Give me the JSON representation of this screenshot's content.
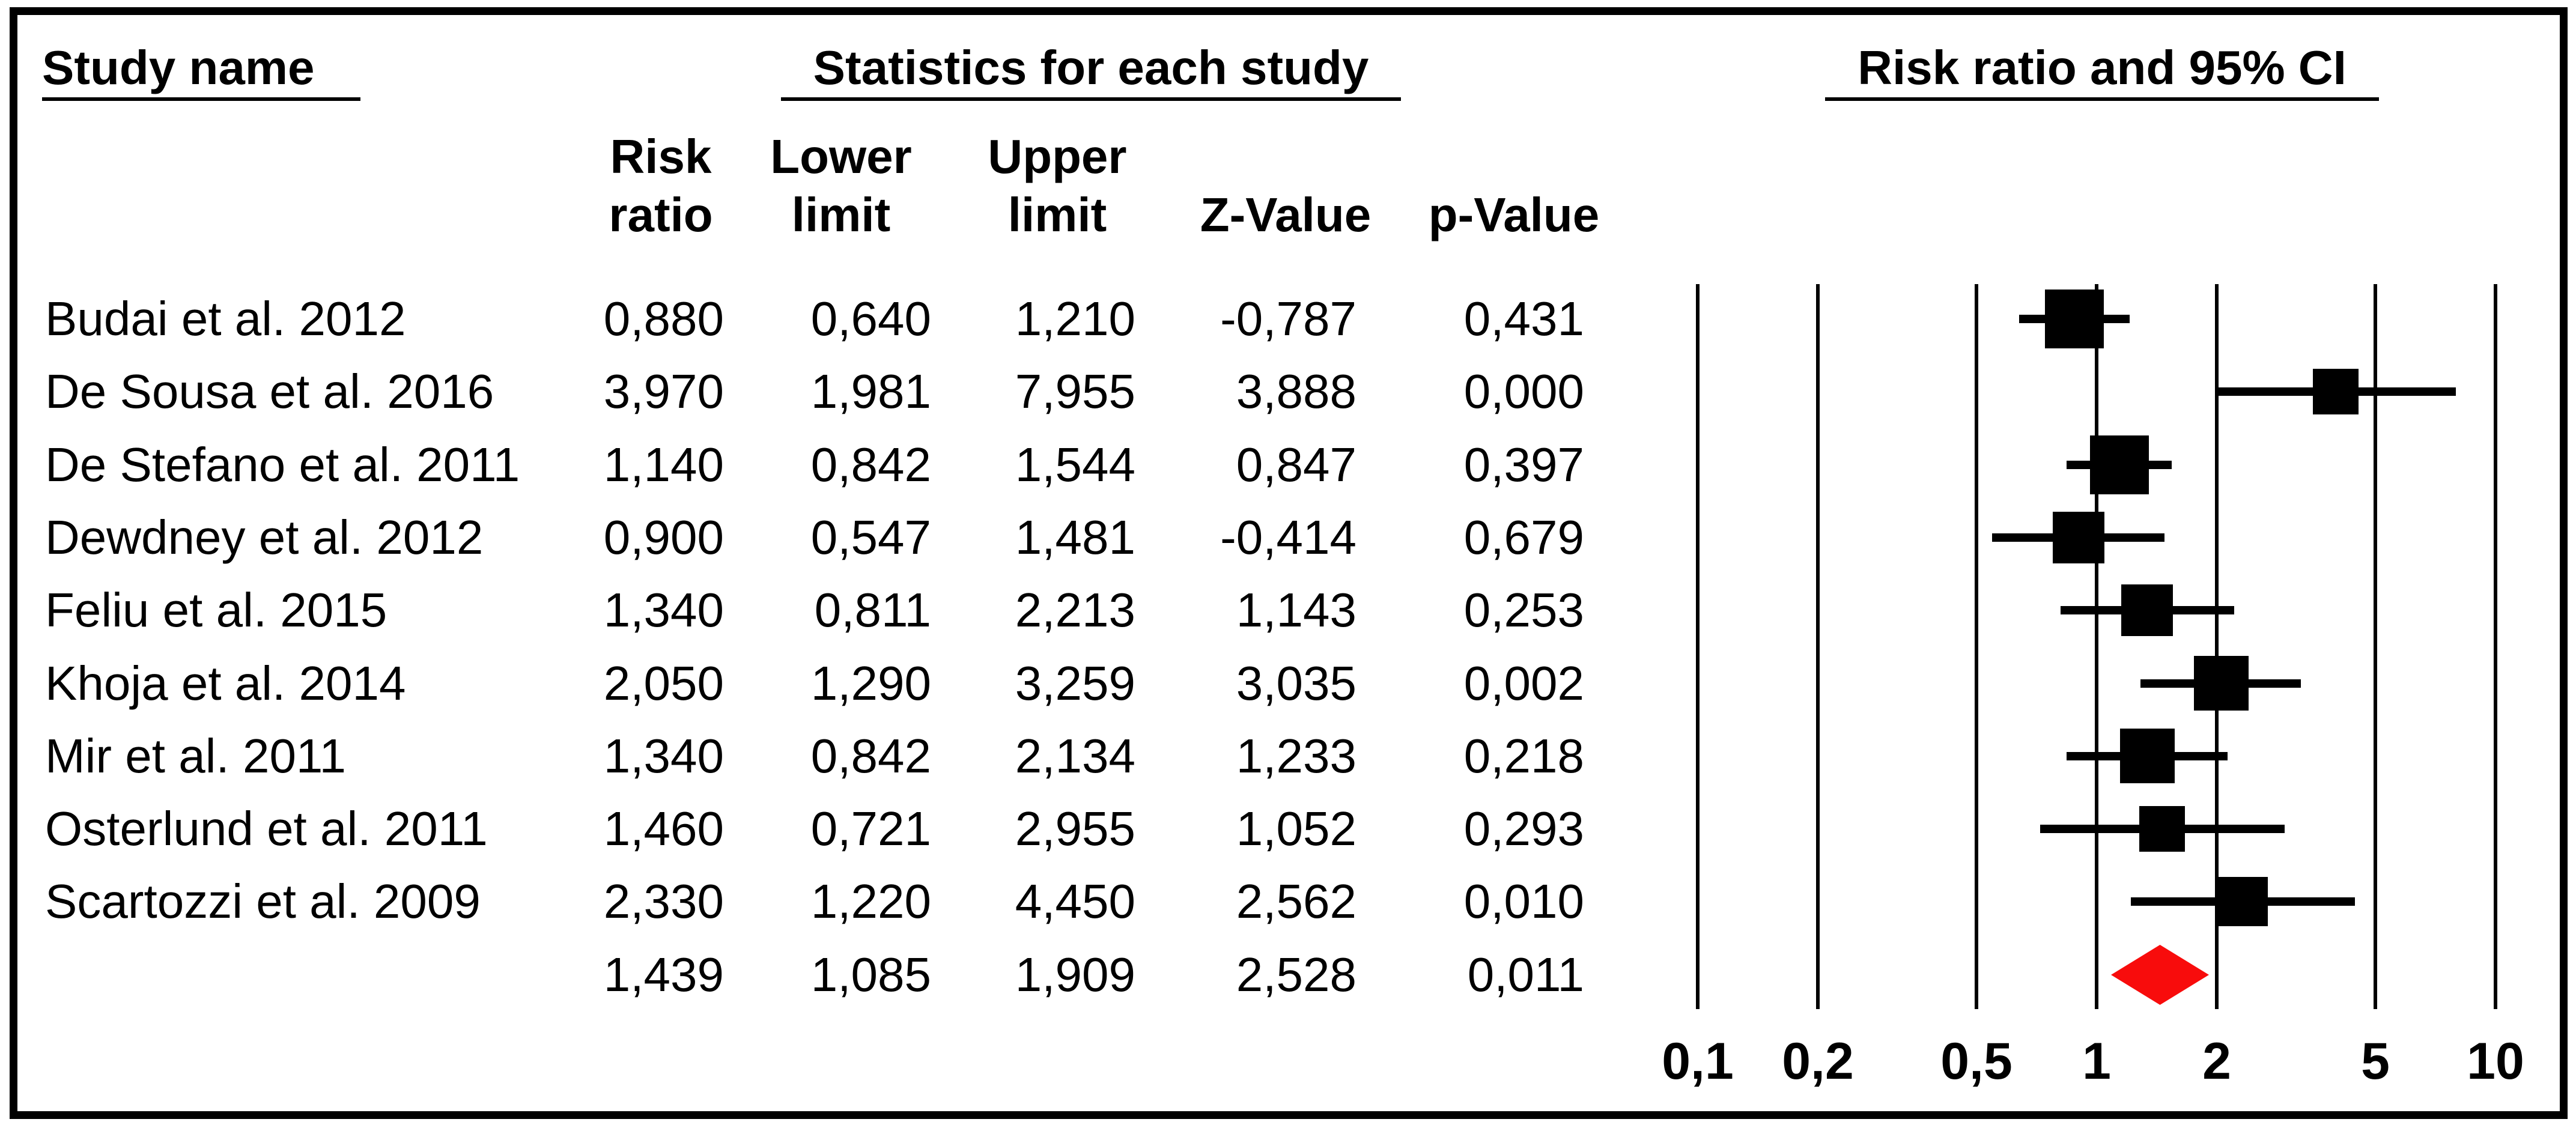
{
  "header": {
    "study_col_title": "Study name",
    "stats_title": "Statistics for each study",
    "plot_title": "Risk ratio and 95% CI",
    "col_headers_two_line": [
      "Risk\nratio",
      "Lower\nlimit",
      "Upper\nlimit"
    ],
    "col_headers_one_line": [
      "Z-Value",
      "p-Value"
    ]
  },
  "chart_data": {
    "type": "forest",
    "title": "Risk ratio and 95% CI",
    "x_axis": {
      "scale": "log10",
      "min": 0.1,
      "max": 10,
      "ticks": [
        0.1,
        0.2,
        0.5,
        1,
        2,
        5,
        10
      ],
      "tick_labels": [
        "0,1",
        "0,2",
        "0,5",
        "1",
        "2",
        "5",
        "10"
      ]
    },
    "columns": [
      "Risk ratio",
      "Lower limit",
      "Upper limit",
      "Z-Value",
      "p-Value"
    ],
    "studies": [
      {
        "name": "Budai et al. 2012",
        "risk_ratio": 0.88,
        "lower": 0.64,
        "upper": 1.21,
        "z": -0.787,
        "p": 0.431,
        "display": [
          "0,880",
          "0,640",
          "1,210",
          "-0,787",
          "0,431"
        ],
        "weight": 1.0
      },
      {
        "name": "De Sousa et al. 2016",
        "risk_ratio": 3.97,
        "lower": 1.981,
        "upper": 7.955,
        "z": 3.888,
        "p": 0.0,
        "display": [
          "3,970",
          "1,981",
          "7,955",
          "3,888",
          "0,000"
        ],
        "weight": 0.78
      },
      {
        "name": "De Stefano et al. 2011",
        "risk_ratio": 1.14,
        "lower": 0.842,
        "upper": 1.544,
        "z": 0.847,
        "p": 0.397,
        "display": [
          "1,140",
          "0,842",
          "1,544",
          "0,847",
          "0,397"
        ],
        "weight": 1.0
      },
      {
        "name": "Dewdney et al. 2012",
        "risk_ratio": 0.9,
        "lower": 0.547,
        "upper": 1.481,
        "z": -0.414,
        "p": 0.679,
        "display": [
          "0,900",
          "0,547",
          "1,481",
          "-0,414",
          "0,679"
        ],
        "weight": 0.88
      },
      {
        "name": "Feliu et al. 2015",
        "risk_ratio": 1.34,
        "lower": 0.811,
        "upper": 2.213,
        "z": 1.143,
        "p": 0.253,
        "display": [
          "1,340",
          "0,811",
          "2,213",
          "1,143",
          "0,253"
        ],
        "weight": 0.88
      },
      {
        "name": "Khoja et al. 2014",
        "risk_ratio": 2.05,
        "lower": 1.29,
        "upper": 3.259,
        "z": 3.035,
        "p": 0.002,
        "display": [
          "2,050",
          "1,290",
          "3,259",
          "3,035",
          "0,002"
        ],
        "weight": 0.93
      },
      {
        "name": "Mir et al. 2011",
        "risk_ratio": 1.34,
        "lower": 0.842,
        "upper": 2.134,
        "z": 1.233,
        "p": 0.218,
        "display": [
          "1,340",
          "0,842",
          "2,134",
          "1,233",
          "0,218"
        ],
        "weight": 0.93
      },
      {
        "name": "Osterlund et al. 2011",
        "risk_ratio": 1.46,
        "lower": 0.721,
        "upper": 2.955,
        "z": 1.052,
        "p": 0.293,
        "display": [
          "1,460",
          "0,721",
          "2,955",
          "1,052",
          "0,293"
        ],
        "weight": 0.78
      },
      {
        "name": "Scartozzi et al. 2009",
        "risk_ratio": 2.33,
        "lower": 1.22,
        "upper": 4.45,
        "z": 2.562,
        "p": 0.01,
        "display": [
          "2,330",
          "1,220",
          "4,450",
          "2,562",
          "0,010"
        ],
        "weight": 0.84
      }
    ],
    "summary": {
      "risk_ratio": 1.439,
      "lower": 1.085,
      "upper": 1.909,
      "z": 2.528,
      "p": 0.011,
      "display": [
        "1,439",
        "1,085",
        "1,909",
        "2,528",
        "0,011"
      ]
    },
    "colors": {
      "study_marker": "#000000",
      "summary_diamond": "#f80c0c",
      "lines": "#000000"
    }
  }
}
